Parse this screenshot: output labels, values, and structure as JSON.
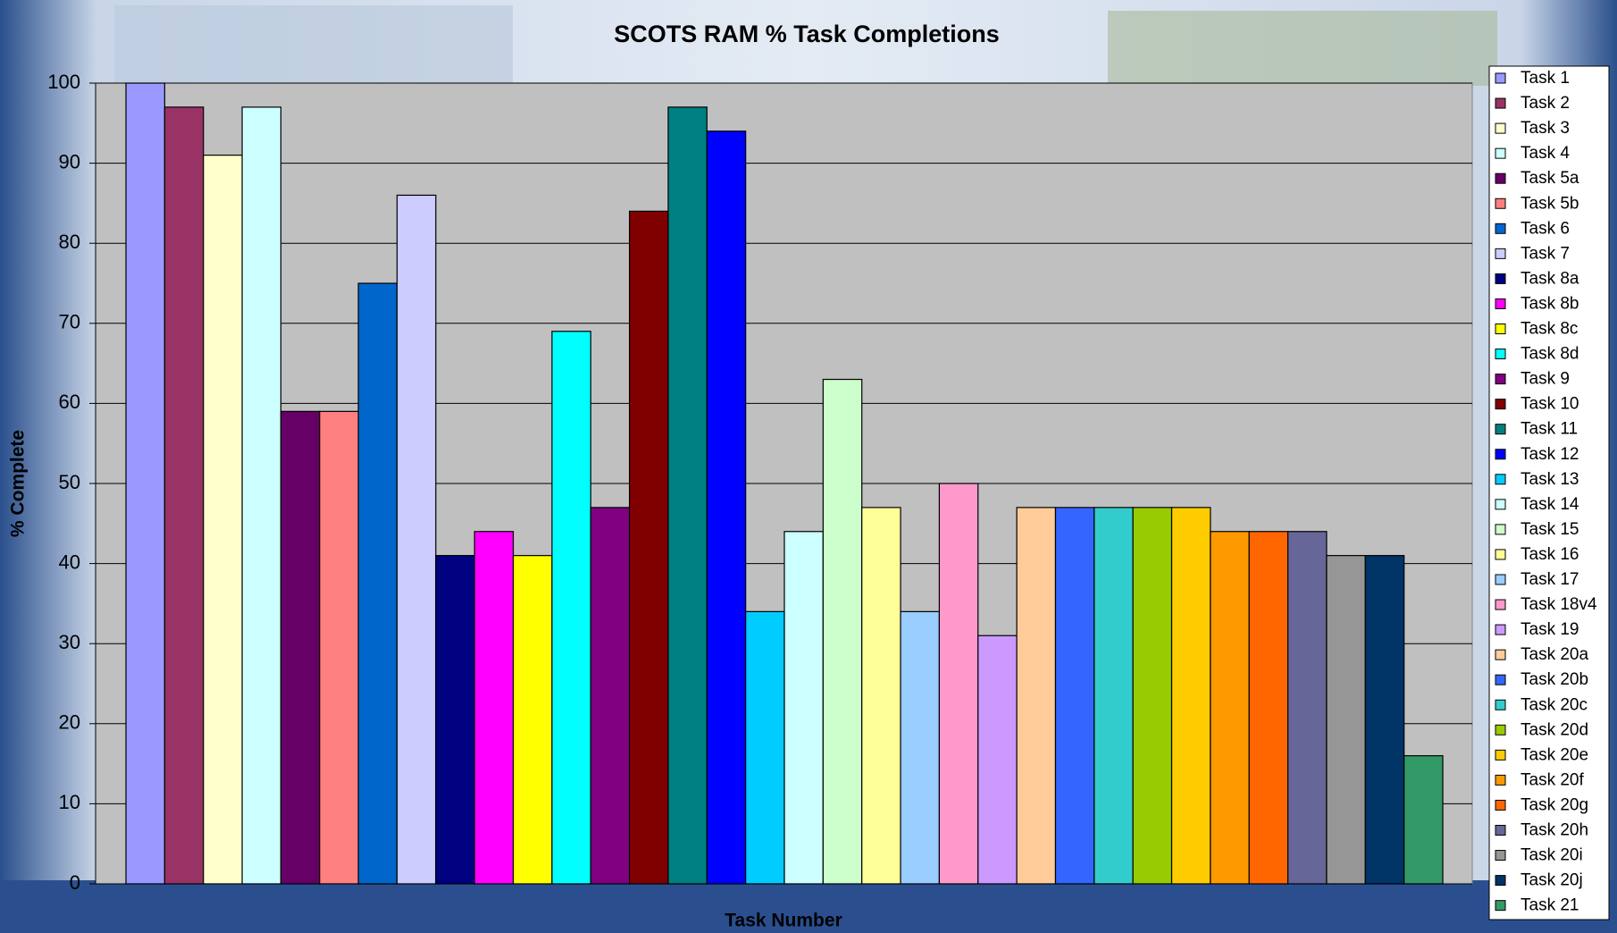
{
  "chart_data": {
    "type": "bar",
    "title": "SCOTS RAM % Task Completions",
    "x_label": "Task Number",
    "y_label": "% Complete",
    "categories": [
      null
    ],
    "ylim": [
      0,
      100
    ],
    "yticks": [
      0,
      10,
      20,
      30,
      40,
      50,
      60,
      70,
      80,
      90,
      100
    ],
    "grid": true,
    "legend": "right",
    "series": [
      {
        "name": "Task 1",
        "color": "#9999ff",
        "values": [
          100
        ]
      },
      {
        "name": "Task 2",
        "color": "#993366",
        "values": [
          97
        ]
      },
      {
        "name": "Task 3",
        "color": "#ffffcc",
        "values": [
          91
        ]
      },
      {
        "name": "Task 4",
        "color": "#ccffff",
        "values": [
          97
        ]
      },
      {
        "name": "Task 5a",
        "color": "#660066",
        "values": [
          59
        ]
      },
      {
        "name": "Task 5b",
        "color": "#ff8080",
        "values": [
          59
        ]
      },
      {
        "name": "Task 6",
        "color": "#0066cc",
        "values": [
          75
        ]
      },
      {
        "name": "Task 7",
        "color": "#ccccff",
        "values": [
          86
        ]
      },
      {
        "name": "Task 8a",
        "color": "#000080",
        "values": [
          41
        ]
      },
      {
        "name": "Task 8b",
        "color": "#ff00ff",
        "values": [
          44
        ]
      },
      {
        "name": "Task 8c",
        "color": "#ffff00",
        "values": [
          41
        ]
      },
      {
        "name": "Task 8d",
        "color": "#00ffff",
        "values": [
          69
        ]
      },
      {
        "name": "Task 9",
        "color": "#800080",
        "values": [
          47
        ]
      },
      {
        "name": "Task 10",
        "color": "#800000",
        "values": [
          84
        ]
      },
      {
        "name": "Task 11",
        "color": "#008080",
        "values": [
          97
        ]
      },
      {
        "name": "Task 12",
        "color": "#0000ff",
        "values": [
          94
        ]
      },
      {
        "name": "Task 13",
        "color": "#00ccff",
        "values": [
          34
        ]
      },
      {
        "name": "Task 14",
        "color": "#ccffff",
        "values": [
          44
        ]
      },
      {
        "name": "Task 15",
        "color": "#ccffcc",
        "values": [
          63
        ]
      },
      {
        "name": "Task 16",
        "color": "#ffff99",
        "values": [
          47
        ]
      },
      {
        "name": "Task 17",
        "color": "#99ccff",
        "values": [
          34
        ]
      },
      {
        "name": "Task 18v4",
        "color": "#ff99cc",
        "values": [
          50
        ]
      },
      {
        "name": "Task 19",
        "color": "#cc99ff",
        "values": [
          31
        ]
      },
      {
        "name": "Task 20a",
        "color": "#ffcc99",
        "values": [
          47
        ]
      },
      {
        "name": "Task 20b",
        "color": "#3366ff",
        "values": [
          47
        ]
      },
      {
        "name": "Task 20c",
        "color": "#33cccc",
        "values": [
          47
        ]
      },
      {
        "name": "Task 20d",
        "color": "#99cc00",
        "values": [
          47
        ]
      },
      {
        "name": "Task 20e",
        "color": "#ffcc00",
        "values": [
          47
        ]
      },
      {
        "name": "Task 20f",
        "color": "#ff9900",
        "values": [
          44
        ]
      },
      {
        "name": "Task 20g",
        "color": "#ff6600",
        "values": [
          44
        ]
      },
      {
        "name": "Task 20h",
        "color": "#666699",
        "values": [
          44
        ]
      },
      {
        "name": "Task 20i",
        "color": "#969696",
        "values": [
          41
        ]
      },
      {
        "name": "Task 20j",
        "color": "#003366",
        "values": [
          41
        ]
      },
      {
        "name": "Task 21",
        "color": "#339966",
        "values": [
          16
        ]
      }
    ]
  }
}
